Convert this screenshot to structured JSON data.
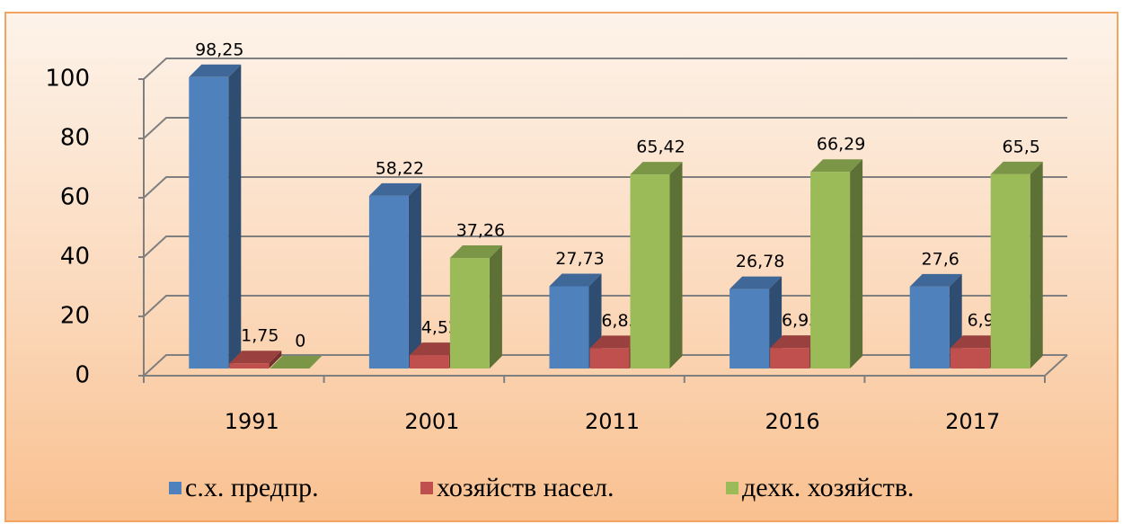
{
  "chart_data": {
    "type": "bar3d",
    "categories": [
      "1991",
      "2001",
      "2011",
      "2016",
      "2017"
    ],
    "series": [
      {
        "name": "с.х. предпр.",
        "color": "#4f81bd",
        "values": [
          98.25,
          58.22,
          27.73,
          26.78,
          27.6
        ],
        "value_labels": [
          "98,25",
          "58,22",
          "27,73",
          "26,78",
          "27,6"
        ]
      },
      {
        "name": "хозяйств насел.",
        "color": "#c0504d",
        "values": [
          1.75,
          4.52,
          6.85,
          6.93,
          6.9
        ],
        "value_labels": [
          "1,75",
          "4,52",
          "6,85",
          "6,93",
          "6,9"
        ]
      },
      {
        "name": "дехк. хозяйств.",
        "color": "#9bbb59",
        "values": [
          0,
          37.26,
          65.42,
          66.29,
          65.5
        ],
        "value_labels": [
          "0",
          "37,26",
          "65,42",
          "66,29",
          "65,5"
        ]
      }
    ],
    "ylim": [
      0,
      100
    ],
    "yticks": [
      0,
      20,
      40,
      60,
      80,
      100
    ],
    "grid": true,
    "legend": "bottom"
  }
}
